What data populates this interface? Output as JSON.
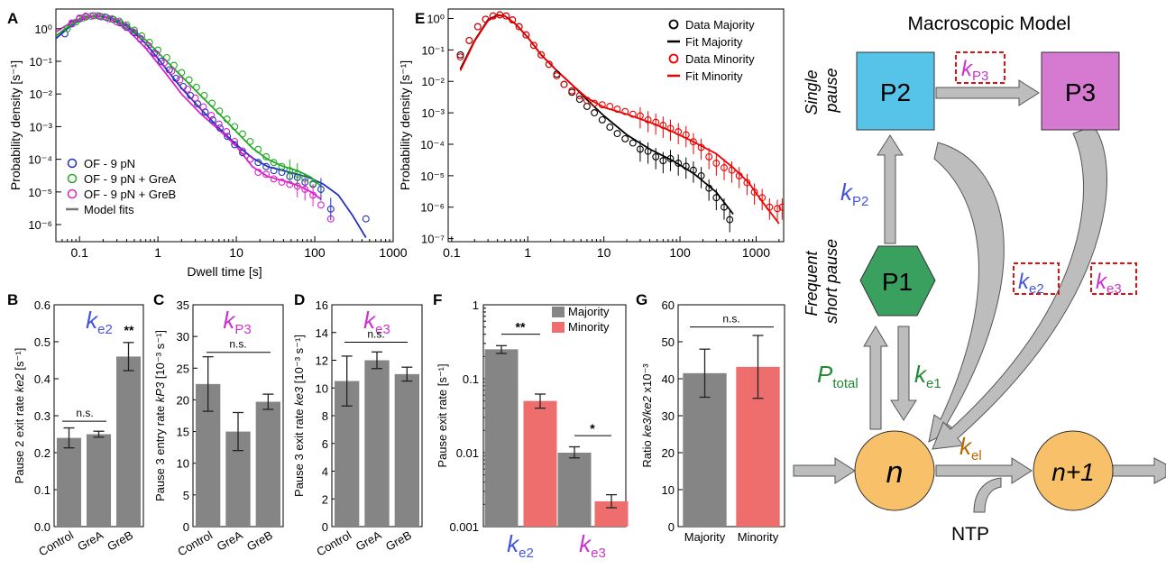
{
  "chart_data": [
    {
      "panel": "A",
      "type": "scatter",
      "xlabel": "Dwell time [s]",
      "ylabel": "Probability density [s⁻¹]",
      "x_scale": "log",
      "y_scale": "log",
      "xlim": [
        0.05,
        1000
      ],
      "ylim": [
        3e-07,
        4
      ],
      "x_ticks": [
        "0.1",
        "1",
        "10",
        "100",
        "1000"
      ],
      "y_ticks": [
        "10⁰",
        "10⁻¹",
        "10⁻²",
        "10⁻³",
        "10⁻⁴",
        "10⁻⁵",
        "10⁻⁶"
      ],
      "legend_position": "bottom-left",
      "legend": [
        "OF - 9 pN",
        "OF - 9 pN + GreA",
        "OF - 9 pN + GreB",
        "Model fits"
      ],
      "series": [
        {
          "name": "OF - 9 pN",
          "color": "#2233bb",
          "x": [
            0.065,
            0.08,
            0.1,
            0.12,
            0.15,
            0.18,
            0.22,
            0.27,
            0.33,
            0.4,
            0.5,
            0.6,
            0.75,
            0.9,
            1.1,
            1.4,
            1.7,
            2.1,
            2.6,
            3.2,
            4,
            5,
            6.2,
            7.7,
            9.5,
            12,
            15,
            19,
            24,
            30,
            38,
            48,
            60,
            75,
            95,
            120,
            160,
            450
          ],
          "y": [
            0.7,
            1.4,
            2.0,
            2.3,
            2.5,
            2.4,
            2.2,
            1.9,
            1.5,
            1.1,
            0.75,
            0.48,
            0.3,
            0.18,
            0.1,
            0.055,
            0.03,
            0.017,
            0.009,
            0.005,
            0.0028,
            0.0016,
            0.0009,
            0.0005,
            0.00028,
            0.00016,
            0.0001,
            8e-05,
            6e-05,
            4.5e-05,
            4e-05,
            3e-05,
            2.8e-05,
            2e-05,
            1.7e-05,
            1.2e-05,
            3e-06,
            1.5e-06
          ],
          "fit_x": [
            0.05,
            0.08,
            0.12,
            0.17,
            0.25,
            0.4,
            0.7,
            1.2,
            2,
            3.5,
            6,
            10,
            16,
            25,
            40,
            60,
            90,
            130,
            200,
            300,
            450
          ],
          "fit_y": [
            0.5,
            1.3,
            2.2,
            2.5,
            2.2,
            1.2,
            0.35,
            0.07,
            0.015,
            0.0035,
            0.0009,
            0.00028,
            0.00011,
            6e-05,
            4.5e-05,
            3.5e-05,
            2.6e-05,
            1.7e-05,
            8e-06,
            2e-06,
            4e-07
          ]
        },
        {
          "name": "OF - 9 pN + GreA",
          "color": "#22aa22",
          "x": [
            0.07,
            0.09,
            0.11,
            0.14,
            0.17,
            0.21,
            0.26,
            0.32,
            0.4,
            0.5,
            0.62,
            0.78,
            1.0,
            1.3,
            1.6,
            2.0,
            2.5,
            3.1,
            3.9,
            4.9,
            6.1,
            7.6,
            9.5,
            12,
            15,
            19,
            24,
            30,
            38,
            48,
            60,
            75,
            95
          ],
          "y": [
            1.0,
            1.6,
            2.1,
            2.4,
            2.5,
            2.3,
            2.0,
            1.7,
            1.3,
            0.9,
            0.6,
            0.38,
            0.22,
            0.13,
            0.075,
            0.045,
            0.027,
            0.016,
            0.009,
            0.0052,
            0.003,
            0.0017,
            0.001,
            0.0006,
            0.00035,
            0.0002,
            0.00012,
            8e-05,
            6e-05,
            4.5e-05,
            3.5e-05,
            2.6e-05,
            1.8e-05
          ],
          "fit_x": [
            0.05,
            0.08,
            0.12,
            0.17,
            0.25,
            0.4,
            0.7,
            1.2,
            2,
            3.5,
            6,
            10,
            16,
            25,
            40,
            60,
            90,
            120
          ],
          "fit_y": [
            0.6,
            1.4,
            2.2,
            2.4,
            2.2,
            1.3,
            0.45,
            0.12,
            0.035,
            0.009,
            0.0025,
            0.0007,
            0.00022,
            0.0001,
            6e-05,
            4.5e-05,
            2.8e-05,
            1.5e-05
          ]
        },
        {
          "name": "OF - 9 pN + GreB",
          "color": "#dd22cc",
          "x": [
            0.08,
            0.1,
            0.12,
            0.15,
            0.19,
            0.24,
            0.3,
            0.38,
            0.48,
            0.6,
            0.75,
            0.95,
            1.2,
            1.5,
            1.9,
            2.4,
            3.0,
            3.8,
            4.8,
            6,
            7.5,
            9.5,
            12,
            15,
            19,
            24,
            30,
            38,
            48,
            60,
            75,
            95,
            120,
            160
          ],
          "y": [
            1.5,
            2.1,
            2.4,
            2.5,
            2.3,
            2.0,
            1.6,
            1.2,
            0.8,
            0.5,
            0.3,
            0.17,
            0.09,
            0.05,
            0.027,
            0.014,
            0.0075,
            0.004,
            0.0022,
            0.0012,
            0.0007,
            0.00035,
            0.00018,
            0.0001,
            4e-05,
            3.5e-05,
            2.5e-05,
            2e-05,
            1.7e-05,
            1.5e-05,
            1.2e-05,
            8e-06,
            4e-06,
            1.5e-06
          ],
          "fit_x": [
            0.05,
            0.08,
            0.12,
            0.17,
            0.25,
            0.4,
            0.7,
            1.2,
            2,
            3.5,
            6,
            10,
            16,
            25,
            40,
            60,
            90,
            120
          ],
          "fit_y": [
            0.8,
            1.6,
            2.4,
            2.5,
            2.0,
            1.0,
            0.25,
            0.05,
            0.01,
            0.0025,
            0.0008,
            0.00025,
            6e-05,
            3e-05,
            2.2e-05,
            1.6e-05,
            1e-05,
            6e-06
          ]
        }
      ]
    },
    {
      "panel": "E",
      "type": "scatter",
      "xlabel": "",
      "ylabel": "Probability density [s⁻¹]",
      "x_scale": "log",
      "y_scale": "log",
      "xlim": [
        0.09,
        2300
      ],
      "ylim": [
        8e-08,
        2
      ],
      "x_ticks": [
        "0.1",
        "1",
        "10",
        "100",
        "1000"
      ],
      "y_ticks": [
        "10⁰",
        "10⁻¹",
        "10⁻²",
        "10⁻³",
        "10⁻⁴",
        "10⁻⁵",
        "10⁻⁶",
        "10⁻⁷"
      ],
      "legend_position": "top-right",
      "legend": [
        "Data Majority",
        "Fit Majority",
        "Data Minority",
        "Fit Minority"
      ],
      "series": [
        {
          "name": "Data Majority",
          "color": "#000000",
          "x": [
            0.13,
            0.17,
            0.22,
            0.28,
            0.35,
            0.43,
            0.52,
            0.63,
            0.77,
            0.95,
            1.2,
            1.5,
            1.9,
            2.4,
            3,
            3.8,
            4.8,
            6,
            7.5,
            9.5,
            12,
            15,
            19,
            24,
            30,
            38,
            48,
            60,
            75,
            95,
            120,
            150,
            190,
            240,
            300,
            380,
            450
          ],
          "y": [
            0.07,
            0.2,
            0.55,
            0.95,
            1.2,
            1.3,
            1.2,
            0.9,
            0.55,
            0.3,
            0.14,
            0.07,
            0.035,
            0.017,
            0.008,
            0.0045,
            0.0027,
            0.0016,
            0.001,
            0.0006,
            0.00035,
            0.00022,
            0.00015,
            0.00011,
            7e-05,
            6e-05,
            4e-05,
            3e-05,
            3.5e-05,
            2.5e-05,
            2e-05,
            1.5e-05,
            1e-05,
            4e-06,
            2e-06,
            1e-06,
            4e-07
          ],
          "fit_x": [
            0.13,
            0.2,
            0.3,
            0.4,
            0.5,
            0.7,
            1,
            1.5,
            2.5,
            4,
            6,
            10,
            20,
            40,
            80,
            150,
            300,
            500
          ],
          "fit_y": [
            0.025,
            0.2,
            0.9,
            1.3,
            1.2,
            0.65,
            0.25,
            0.07,
            0.02,
            0.007,
            0.0026,
            0.0008,
            0.0002,
            7e-05,
            3e-05,
            1.2e-05,
            3e-06,
            6e-07
          ]
        },
        {
          "name": "Data Minority",
          "color": "#ee0000",
          "x": [
            0.13,
            0.17,
            0.22,
            0.28,
            0.35,
            0.43,
            0.52,
            0.63,
            0.77,
            0.95,
            1.2,
            1.5,
            1.9,
            2.4,
            3,
            3.8,
            4.8,
            6,
            7.5,
            9.5,
            12,
            15,
            19,
            24,
            30,
            38,
            48,
            60,
            75,
            95,
            120,
            150,
            190,
            240,
            300,
            380,
            480,
            600,
            760,
            950,
            1200,
            1500,
            1900,
            2200
          ],
          "y": [
            0.06,
            0.2,
            0.55,
            0.95,
            1.2,
            1.3,
            1.2,
            0.9,
            0.55,
            0.3,
            0.14,
            0.07,
            0.035,
            0.015,
            0.008,
            0.005,
            0.0035,
            0.0025,
            0.002,
            0.0018,
            0.0016,
            0.0013,
            0.0011,
            0.0009,
            0.0008,
            0.0006,
            0.0005,
            0.0004,
            0.00032,
            0.00025,
            0.0002,
            0.00012,
            8e-05,
            4e-05,
            2.5e-05,
            1.8e-05,
            1.5e-05,
            1e-05,
            6e-06,
            3e-06,
            2e-06,
            1e-06,
            9e-07,
            1e-06
          ],
          "fit_x": [
            0.13,
            0.2,
            0.3,
            0.4,
            0.5,
            0.7,
            1,
            1.5,
            2.5,
            4,
            6,
            10,
            20,
            40,
            80,
            150,
            300,
            500,
            800,
            1200,
            2000
          ],
          "fit_y": [
            0.022,
            0.19,
            0.85,
            1.25,
            1.2,
            0.65,
            0.25,
            0.07,
            0.02,
            0.007,
            0.003,
            0.0015,
            0.0009,
            0.0005,
            0.00025,
            0.00012,
            5e-05,
            1.8e-05,
            6e-06,
            1.5e-06,
            3e-07
          ]
        }
      ]
    },
    {
      "panel": "B",
      "type": "bar",
      "categories": [
        "Control",
        "GreA",
        "GreB"
      ],
      "values": [
        0.24,
        0.25,
        0.46
      ],
      "errors": [
        0.027,
        0.008,
        0.038
      ],
      "ylabel_parts": [
        "Pause 2 exit rate ",
        "ke2",
        " [s⁻¹]"
      ],
      "ylim": [
        0,
        0.6
      ],
      "y_ticks": [
        "0.0",
        "0.1",
        "0.2",
        "0.3",
        "0.4",
        "0.5",
        "0.6"
      ],
      "annotations": [
        "n.s.",
        "**"
      ],
      "rate_label": {
        "main": "k",
        "sub": "e2",
        "color": "#4455dd"
      }
    },
    {
      "panel": "C",
      "type": "bar",
      "categories": [
        "Control",
        "GreA",
        "GreB"
      ],
      "values": [
        22.5,
        15,
        19.7
      ],
      "errors": [
        4.3,
        3.0,
        1.2
      ],
      "ylabel_parts": [
        "Pause 3 entry rate ",
        "kP3",
        " [10⁻³ s⁻¹]"
      ],
      "ylim": [
        0,
        35
      ],
      "y_ticks": [
        "0",
        "5",
        "10",
        "15",
        "20",
        "25",
        "30",
        "35"
      ],
      "annotations": [
        "n.s."
      ],
      "rate_label": {
        "main": "k",
        "sub": "P3",
        "color": "#cc33cc"
      }
    },
    {
      "panel": "D",
      "type": "bar",
      "categories": [
        "Control",
        "GreA",
        "GreB"
      ],
      "values": [
        10.5,
        12,
        11
      ],
      "errors": [
        1.8,
        0.6,
        0.5
      ],
      "ylabel_parts": [
        "Pause 3 exit rate ",
        "ke3",
        " [10⁻³ s⁻¹]"
      ],
      "ylim": [
        0,
        16
      ],
      "y_ticks": [
        "0",
        "2",
        "4",
        "6",
        "8",
        "10",
        "12",
        "14",
        "16"
      ],
      "annotations": [
        "n.s."
      ],
      "rate_label": {
        "main": "k",
        "sub": "e3",
        "color": "#cc33cc"
      }
    },
    {
      "panel": "F",
      "type": "bar",
      "y_scale": "log",
      "ylabel": "Pause exit rate [s⁻¹]",
      "ylim": [
        0.001,
        1
      ],
      "y_ticks": [
        "0.001",
        "0.01",
        "0.1",
        "1"
      ],
      "legend": [
        "Majority",
        "Minority"
      ],
      "legend_position": "top-right",
      "groups": [
        {
          "main": "k",
          "sub": "e2",
          "color": "#4455dd"
        },
        {
          "main": "k",
          "sub": "e3",
          "color": "#cc33cc"
        }
      ],
      "series": [
        {
          "name": "Majority",
          "color": "#858585",
          "values": [
            0.25,
            0.01
          ],
          "errors": [
            [
              0.22,
              0.28
            ],
            [
              0.0085,
              0.012
            ]
          ]
        },
        {
          "name": "Minority",
          "color": "#ee6e6e",
          "values": [
            0.05,
            0.0022
          ],
          "errors": [
            [
              0.04,
              0.062
            ],
            [
              0.0018,
              0.0027
            ]
          ]
        }
      ],
      "annotations": [
        "**",
        "*"
      ]
    },
    {
      "panel": "G",
      "type": "bar",
      "categories": [
        "Majority",
        "Minority"
      ],
      "values": [
        41.5,
        43.2
      ],
      "errors": [
        6.5,
        8.5
      ],
      "colors": [
        "#858585",
        "#ee6e6e"
      ],
      "ylabel_parts": [
        "Ratio ",
        "ke3/ke2",
        " x10⁻³"
      ],
      "ylim": [
        0,
        60
      ],
      "y_ticks": [
        "0",
        "10",
        "20",
        "30",
        "40",
        "50",
        "60"
      ],
      "annotations": [
        "n.s."
      ]
    }
  ],
  "model": {
    "title": "Macroscopic Model",
    "single_pause": [
      "Single",
      "pause"
    ],
    "frequent_pause": [
      "Frequent",
      "short pause"
    ],
    "nodes": {
      "p2": "P2",
      "p3": "P3",
      "p1": "P1",
      "n": "n",
      "n1": "n+1",
      "ntp": "NTP"
    },
    "rates": {
      "kp3": {
        "main": "k",
        "sub": "P3",
        "color": "#cc33cc"
      },
      "kp2": {
        "main": "k",
        "sub": "P2",
        "color": "#4455dd"
      },
      "ke2": {
        "main": "k",
        "sub": "e2",
        "color": "#4455dd"
      },
      "ke3": {
        "main": "k",
        "sub": "e3",
        "color": "#cc33cc"
      },
      "ptotal": {
        "main": "P",
        "sub": "total",
        "color": "#228833"
      },
      "ke1": {
        "main": "k",
        "sub": "e1",
        "color": "#228833"
      },
      "kel": {
        "main": "k",
        "sub": "el",
        "color": "#bb6600"
      }
    },
    "colors": {
      "p2": "#56c3e8",
      "p3": "#d57ad0",
      "p1": "#3aa060",
      "n": "#f8c068",
      "arrow": "#bdbdbd"
    }
  },
  "panel_labels": [
    "A",
    "B",
    "C",
    "D",
    "E",
    "F",
    "G"
  ]
}
